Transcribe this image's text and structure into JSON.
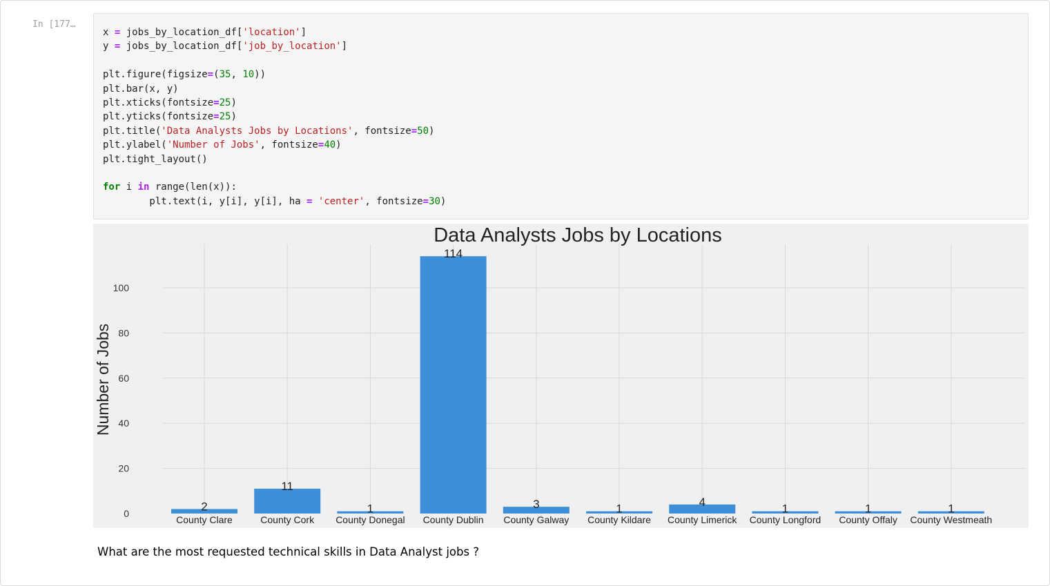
{
  "cell": {
    "prompt": "In [177…"
  },
  "code_lines": [
    [
      {
        "t": "x "
      },
      {
        "t": "=",
        "c": "op"
      },
      {
        "t": " jobs_by_location_df["
      },
      {
        "t": "'location'",
        "c": "str"
      },
      {
        "t": "]"
      }
    ],
    [
      {
        "t": "y "
      },
      {
        "t": "=",
        "c": "op"
      },
      {
        "t": " jobs_by_location_df["
      },
      {
        "t": "'job_by_location'",
        "c": "str"
      },
      {
        "t": "]"
      }
    ],
    [],
    [
      {
        "t": "plt.figure(figsize"
      },
      {
        "t": "=",
        "c": "op"
      },
      {
        "t": "("
      },
      {
        "t": "35",
        "c": "num"
      },
      {
        "t": ", "
      },
      {
        "t": "10",
        "c": "num"
      },
      {
        "t": "))"
      }
    ],
    [
      {
        "t": "plt.bar(x, y)"
      }
    ],
    [
      {
        "t": "plt.xticks(fontsize"
      },
      {
        "t": "=",
        "c": "op"
      },
      {
        "t": "25",
        "c": "num"
      },
      {
        "t": ")"
      }
    ],
    [
      {
        "t": "plt.yticks(fontsize"
      },
      {
        "t": "=",
        "c": "op"
      },
      {
        "t": "25",
        "c": "num"
      },
      {
        "t": ")"
      }
    ],
    [
      {
        "t": "plt.title("
      },
      {
        "t": "'Data Analysts Jobs by Locations'",
        "c": "str"
      },
      {
        "t": ", fontsize"
      },
      {
        "t": "=",
        "c": "op"
      },
      {
        "t": "50",
        "c": "num"
      },
      {
        "t": ")"
      }
    ],
    [
      {
        "t": "plt.ylabel("
      },
      {
        "t": "'Number of Jobs'",
        "c": "str"
      },
      {
        "t": ", fontsize"
      },
      {
        "t": "=",
        "c": "op"
      },
      {
        "t": "40",
        "c": "num"
      },
      {
        "t": ")"
      }
    ],
    [
      {
        "t": "plt.tight_layout()"
      }
    ],
    [],
    [
      {
        "t": "for",
        "c": "kw"
      },
      {
        "t": " i "
      },
      {
        "t": "in",
        "c": "kwop"
      },
      {
        "t": " range(len(x)):"
      }
    ],
    [
      {
        "t": "        plt.text(i, y[i], y[i], ha "
      },
      {
        "t": "=",
        "c": "op"
      },
      {
        "t": " "
      },
      {
        "t": "'center'",
        "c": "str"
      },
      {
        "t": ", fontsize"
      },
      {
        "t": "=",
        "c": "op"
      },
      {
        "t": "30",
        "c": "num"
      },
      {
        "t": ")"
      }
    ]
  ],
  "chart_data": {
    "type": "bar",
    "title": "Data Analysts Jobs by Locations",
    "xlabel": "",
    "ylabel": "Number of Jobs",
    "categories": [
      "County Clare",
      "County Cork",
      "County Donegal",
      "County Dublin",
      "County Galway",
      "County Kildare",
      "County Limerick",
      "County Longford",
      "County Offaly",
      "County Westmeath"
    ],
    "values": [
      2,
      11,
      1,
      114,
      3,
      1,
      4,
      1,
      1,
      1
    ],
    "yticks": [
      0,
      20,
      40,
      60,
      80,
      100
    ],
    "ylim": [
      0,
      120
    ],
    "grid": true,
    "bar_color": "#3f8fd8",
    "grid_color": "#d8d8d8",
    "background": "#f0f0f0"
  },
  "markdown": {
    "text": "What are the most requested technical skills in Data Analyst jobs ?"
  }
}
